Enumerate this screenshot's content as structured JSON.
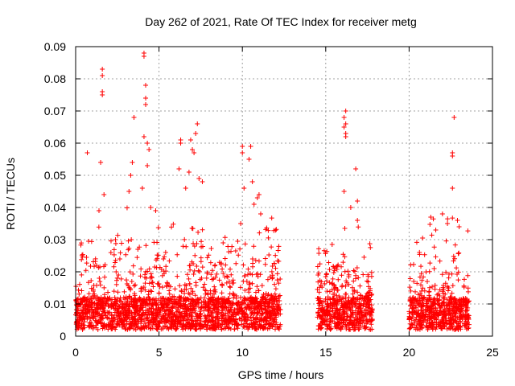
{
  "chart_data": {
    "type": "scatter",
    "title": "Day 262 of 2021, Rate Of TEC Index for receiver metg",
    "xlabel": "GPS time / hours",
    "ylabel": "ROTI / TECUs",
    "xlim": [
      0,
      25
    ],
    "ylim": [
      0,
      0.09
    ],
    "xticks": [
      0,
      5,
      10,
      15,
      20,
      25
    ],
    "xtick_labels": [
      "0",
      "5",
      "10",
      "15",
      "20",
      "25"
    ],
    "yticks": [
      0,
      0.01,
      0.02,
      0.03,
      0.04,
      0.05,
      0.06,
      0.07,
      0.08,
      0.09
    ],
    "ytick_labels": [
      "0",
      "0.01",
      "0.02",
      "0.03",
      "0.04",
      "0.05",
      "0.06",
      "0.07",
      "0.08",
      "0.09"
    ],
    "grid": true,
    "marker": "+",
    "color": "#ff0000",
    "dense_segments": [
      {
        "x": [
          0.0,
          12.3
        ],
        "y_base": [
          0.002,
          0.012
        ],
        "y_spread": [
          0.012,
          0.03
        ]
      },
      {
        "x": [
          14.5,
          17.8
        ],
        "y_base": [
          0.002,
          0.012
        ],
        "y_spread": [
          0.01,
          0.025
        ]
      },
      {
        "x": [
          20.0,
          23.6
        ],
        "y_base": [
          0.002,
          0.012
        ],
        "y_spread": [
          0.01,
          0.03
        ]
      }
    ],
    "points": [
      {
        "x": 1.6,
        "y": 0.083
      },
      {
        "x": 1.6,
        "y": 0.081
      },
      {
        "x": 1.6,
        "y": 0.076
      },
      {
        "x": 1.6,
        "y": 0.075
      },
      {
        "x": 1.5,
        "y": 0.054
      },
      {
        "x": 1.7,
        "y": 0.044
      },
      {
        "x": 1.4,
        "y": 0.039
      },
      {
        "x": 0.7,
        "y": 0.057
      },
      {
        "x": 3.5,
        "y": 0.068
      },
      {
        "x": 3.3,
        "y": 0.05
      },
      {
        "x": 3.4,
        "y": 0.054
      },
      {
        "x": 3.2,
        "y": 0.045
      },
      {
        "x": 4.1,
        "y": 0.088
      },
      {
        "x": 4.1,
        "y": 0.087
      },
      {
        "x": 4.2,
        "y": 0.078
      },
      {
        "x": 4.2,
        "y": 0.074
      },
      {
        "x": 4.2,
        "y": 0.072
      },
      {
        "x": 4.1,
        "y": 0.062
      },
      {
        "x": 4.3,
        "y": 0.06
      },
      {
        "x": 4.4,
        "y": 0.058
      },
      {
        "x": 4.3,
        "y": 0.053
      },
      {
        "x": 4.0,
        "y": 0.046
      },
      {
        "x": 4.5,
        "y": 0.04
      },
      {
        "x": 4.8,
        "y": 0.039
      },
      {
        "x": 6.3,
        "y": 0.061
      },
      {
        "x": 6.3,
        "y": 0.06
      },
      {
        "x": 6.9,
        "y": 0.061
      },
      {
        "x": 7.2,
        "y": 0.063
      },
      {
        "x": 7.3,
        "y": 0.066
      },
      {
        "x": 7.0,
        "y": 0.058
      },
      {
        "x": 7.1,
        "y": 0.057
      },
      {
        "x": 6.2,
        "y": 0.052
      },
      {
        "x": 6.8,
        "y": 0.051
      },
      {
        "x": 7.4,
        "y": 0.049
      },
      {
        "x": 6.6,
        "y": 0.046
      },
      {
        "x": 7.6,
        "y": 0.048
      },
      {
        "x": 10.0,
        "y": 0.059
      },
      {
        "x": 10.5,
        "y": 0.059
      },
      {
        "x": 10.0,
        "y": 0.057
      },
      {
        "x": 10.4,
        "y": 0.055
      },
      {
        "x": 10.6,
        "y": 0.048
      },
      {
        "x": 10.1,
        "y": 0.046
      },
      {
        "x": 11.0,
        "y": 0.044
      },
      {
        "x": 10.9,
        "y": 0.043
      },
      {
        "x": 10.7,
        "y": 0.041
      },
      {
        "x": 11.1,
        "y": 0.038
      },
      {
        "x": 9.9,
        "y": 0.035
      },
      {
        "x": 16.2,
        "y": 0.07
      },
      {
        "x": 16.1,
        "y": 0.068
      },
      {
        "x": 16.2,
        "y": 0.066
      },
      {
        "x": 16.1,
        "y": 0.065
      },
      {
        "x": 16.2,
        "y": 0.063
      },
      {
        "x": 16.2,
        "y": 0.062
      },
      {
        "x": 16.8,
        "y": 0.052
      },
      {
        "x": 16.1,
        "y": 0.045
      },
      {
        "x": 16.9,
        "y": 0.042
      },
      {
        "x": 16.5,
        "y": 0.04
      },
      {
        "x": 16.9,
        "y": 0.036
      },
      {
        "x": 22.7,
        "y": 0.068
      },
      {
        "x": 22.6,
        "y": 0.057
      },
      {
        "x": 22.6,
        "y": 0.056
      },
      {
        "x": 22.6,
        "y": 0.046
      },
      {
        "x": 22.0,
        "y": 0.038
      },
      {
        "x": 22.9,
        "y": 0.036
      },
      {
        "x": 21.3,
        "y": 0.037
      },
      {
        "x": 23.0,
        "y": 0.034
      },
      {
        "x": 21.6,
        "y": 0.033
      },
      {
        "x": 22.3,
        "y": 0.035
      }
    ]
  }
}
